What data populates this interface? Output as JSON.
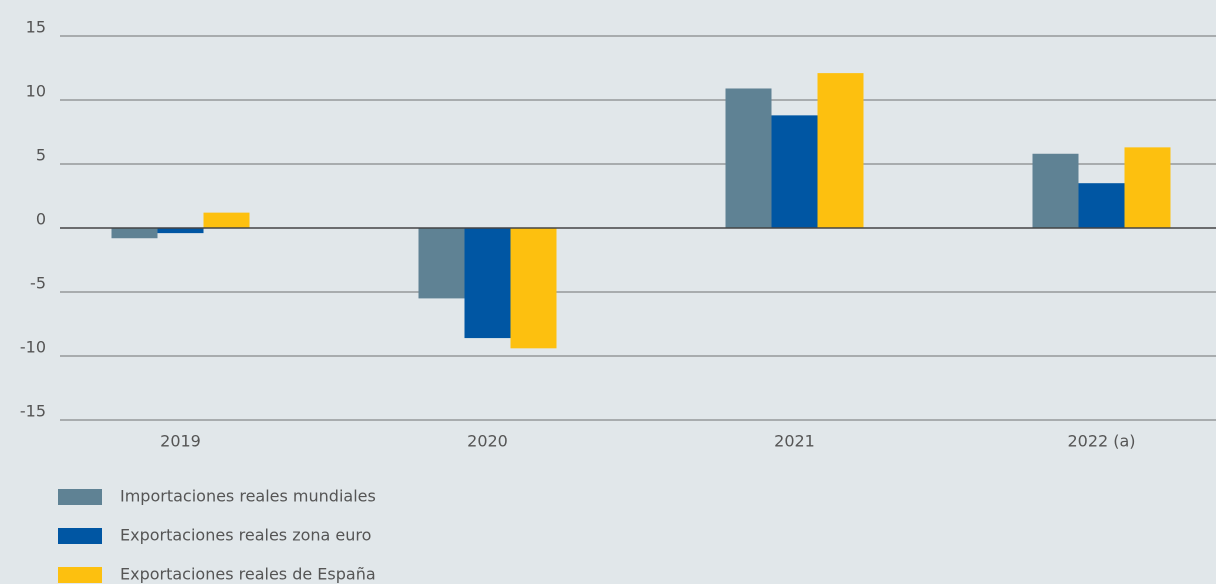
{
  "chart_data": {
    "type": "bar",
    "categories": [
      "2019",
      "2020",
      "2021",
      "2022 (a)"
    ],
    "series": [
      {
        "name": "Importaciones reales mundiales",
        "color": "#5f8294",
        "values": [
          -0.8,
          -5.5,
          10.9,
          5.8
        ]
      },
      {
        "name": "Exportaciones reales zona euro",
        "color": "#0056a3",
        "values": [
          -0.4,
          -8.6,
          8.8,
          3.5
        ]
      },
      {
        "name": "Exportaciones reales de España",
        "color": "#fdc00f",
        "values": [
          1.2,
          -9.4,
          12.1,
          6.3
        ]
      }
    ],
    "ylim": [
      -15,
      15
    ],
    "yticks": [
      -15,
      -10,
      -5,
      0,
      5,
      10,
      15
    ],
    "grid": true
  }
}
